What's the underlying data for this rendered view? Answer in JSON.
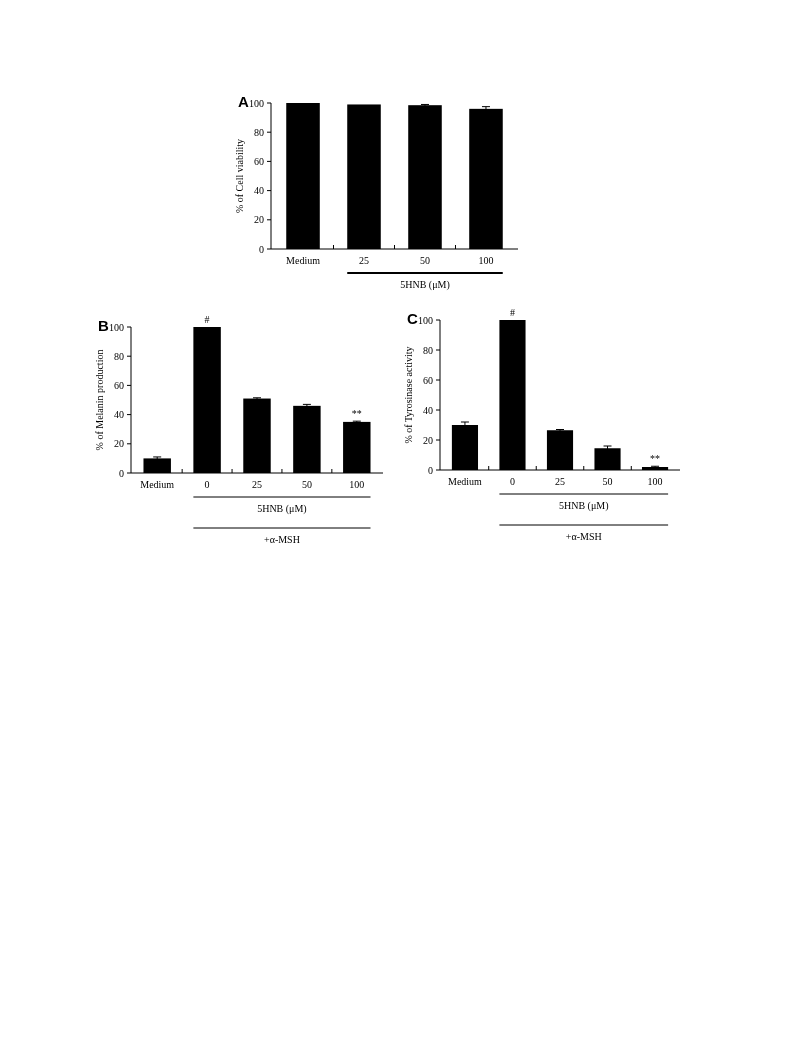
{
  "chart_data": [
    {
      "type": "bar",
      "title": "A",
      "ylabel": "% of Cell viability",
      "categories": [
        "Medium",
        "25",
        "50",
        "100"
      ],
      "values": [
        100,
        99,
        98.5,
        96
      ],
      "errors": [
        null,
        null,
        0.5,
        1.5
      ],
      "color": "#000000",
      "ylim": [
        0,
        100
      ],
      "yticks": [
        0,
        20,
        40,
        60,
        80,
        100
      ],
      "annotations": [
        "5HNB (μM)"
      ]
    },
    {
      "type": "bar",
      "title": "B",
      "ylabel": "% of Melanin production",
      "categories": [
        "Medium",
        "0",
        "25",
        "50",
        "100"
      ],
      "values": [
        10,
        100,
        51,
        46,
        35
      ],
      "errors": [
        1,
        null,
        0.5,
        1,
        0.5
      ],
      "color": "#000000",
      "ylim": [
        0,
        100
      ],
      "yticks": [
        0,
        20,
        40,
        60,
        80,
        100
      ],
      "annotations": [
        {
          "text": "#",
          "x": "0",
          "y": 100
        },
        {
          "text": "**",
          "x": "100",
          "y": 35.5
        },
        "5HNB (μM)",
        "+α-MSH"
      ]
    },
    {
      "type": "bar",
      "title": "C",
      "ylabel": "% of Tyrosinase activity",
      "categories": [
        "Medium",
        "0",
        "25",
        "50",
        "100"
      ],
      "values": [
        30,
        100,
        26.5,
        14.5,
        2
      ],
      "errors": [
        2,
        null,
        0.5,
        1.5,
        0.5
      ],
      "color": "#000000",
      "ylim": [
        0,
        100
      ],
      "yticks": [
        0,
        20,
        40,
        60,
        80,
        100
      ],
      "annotations": [
        {
          "text": "#",
          "x": "0",
          "y": 100
        },
        {
          "text": "**",
          "x": "100",
          "y": 2.5
        },
        "5HNB (μM)",
        "+α-MSH"
      ]
    }
  ]
}
